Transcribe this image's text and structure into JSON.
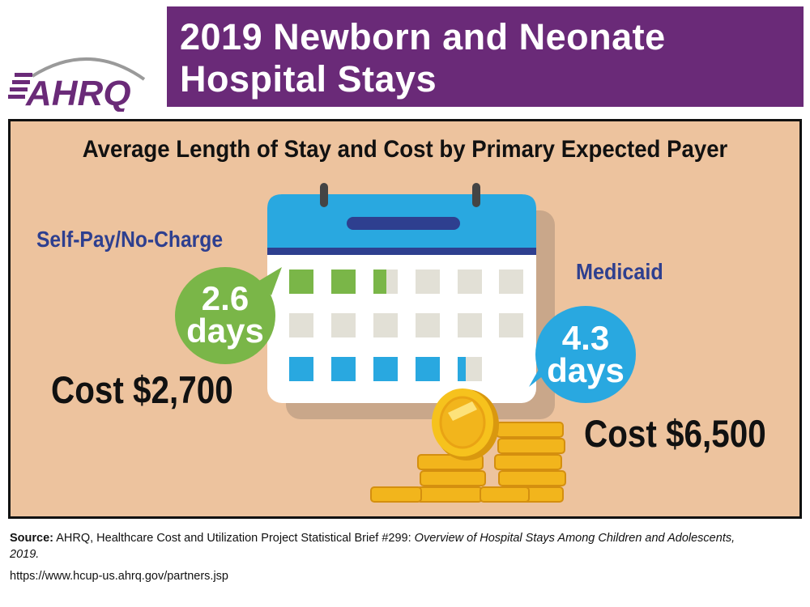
{
  "header": {
    "logo_text": "AHRQ",
    "title_line1": "2019 Newborn and Neonate",
    "title_line2": "Hospital Stays"
  },
  "infographic": {
    "subtitle": "Average Length of Stay and Cost by Primary Expected Payer",
    "payers": [
      {
        "name": "Self-Pay/No-Charge",
        "stay_value": "2.6",
        "stay_unit": "days",
        "cost": "Cost $2,700",
        "color": "#7ab648"
      },
      {
        "name": "Medicaid",
        "stay_value": "4.3",
        "stay_unit": "days",
        "cost": "Cost $6,500",
        "color": "#29a8e0"
      }
    ]
  },
  "footer": {
    "source_label": "Source:",
    "source_text": " AHRQ, Healthcare Cost and Utilization Project Statistical Brief #299: ",
    "source_title": "Overview of Hospital Stays Among Children and Adolescents, 2019.",
    "url": "https://www.hcup-us.ahrq.gov/partners.jsp"
  }
}
